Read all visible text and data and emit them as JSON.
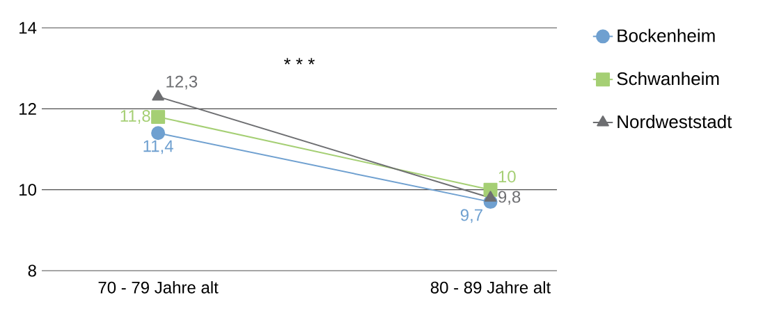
{
  "chart_data": {
    "type": "line",
    "categories": [
      "70 - 79 Jahre alt",
      "80 - 89 Jahre alt"
    ],
    "series": [
      {
        "name": "Bockenheim",
        "color": "#6fa0d0",
        "values": [
          11.4,
          9.7
        ],
        "marker": "circle",
        "value_labels": [
          "11,4",
          "9,7"
        ]
      },
      {
        "name": "Schwanheim",
        "color": "#a5cf74",
        "values": [
          11.8,
          10
        ],
        "marker": "square",
        "value_labels": [
          "11,8",
          "10"
        ]
      },
      {
        "name": "Nordweststadt",
        "color": "#6d6e71",
        "values": [
          12.3,
          9.8
        ],
        "marker": "triangle",
        "value_labels": [
          "12,3",
          "9,8"
        ]
      }
    ],
    "ylim": [
      8,
      14
    ],
    "yticks": [
      8,
      10,
      12,
      14
    ],
    "grid": "y",
    "legend": "right",
    "line_style": "solid",
    "annotations": [
      "* * *"
    ]
  }
}
